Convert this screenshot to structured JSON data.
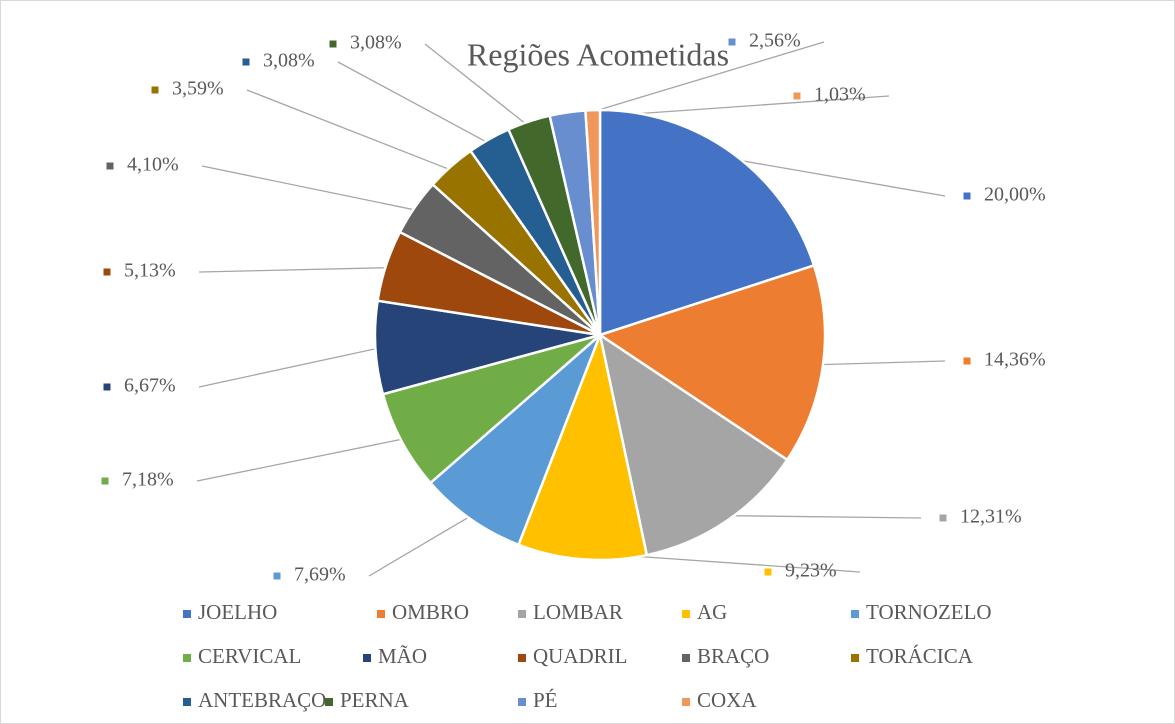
{
  "chart_data": {
    "type": "pie",
    "title": "Regiões Acometidas",
    "categories": [
      "JOELHO",
      "OMBRO",
      "LOMBAR",
      "AG",
      "TORNOZELO",
      "CERVICAL",
      "MÃO",
      "QUADRIL",
      "BRAÇO",
      "TORÁCICA",
      "ANTEBRAÇO",
      "PERNA",
      "PÉ",
      "COXA"
    ],
    "values": [
      20.0,
      14.36,
      12.31,
      9.23,
      7.69,
      7.18,
      6.67,
      5.13,
      4.1,
      3.59,
      3.08,
      3.08,
      2.56,
      1.03
    ],
    "value_labels": [
      "20,00%",
      "14,36%",
      "12,31%",
      "9,23%",
      "7,69%",
      "7,18%",
      "6,67%",
      "5,13%",
      "4,10%",
      "3,59%",
      "3,08%",
      "3,08%",
      "2,56%",
      "1,03%"
    ],
    "colors": [
      "#4472C4",
      "#ED7D31",
      "#A5A5A5",
      "#FFC000",
      "#5B9BD5",
      "#70AD47",
      "#264478",
      "#9E480E",
      "#636363",
      "#997300",
      "#255E91",
      "#43682B",
      "#698ED0",
      "#F1975A"
    ],
    "legend": "bottom"
  }
}
